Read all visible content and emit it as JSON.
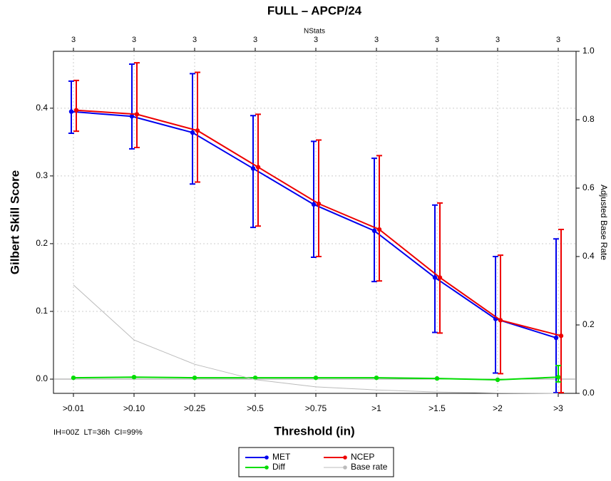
{
  "chart_data": {
    "type": "line",
    "title": "FULL – APCP/24",
    "top_axis_label": "NStats",
    "nstats": [
      "3",
      "3",
      "3",
      "3",
      "3",
      "3",
      "3",
      "3",
      "3"
    ],
    "xlabel": "Threshold (in)",
    "ylabel": "Gilbert Skill Score",
    "y2label": "Adjusted Base Rate",
    "caption": "IH=00Z  LT=36h  CI=99%",
    "categories": [
      ">0.01",
      ">0.10",
      ">0.25",
      ">0.5",
      ">0.75",
      ">1",
      ">1.5",
      ">2",
      ">3"
    ],
    "ylim": [
      -0.021,
      0.484
    ],
    "yticks": [
      {
        "value": 0,
        "label": "0.0"
      },
      0.1,
      0.2,
      0.3,
      0.4
    ],
    "y2lim": [
      0,
      1
    ],
    "y2ticks": [
      {
        "value": 0,
        "label": "0.0"
      },
      0.2,
      0.4,
      0.6,
      0.8,
      {
        "value": 1,
        "label": "1.0"
      }
    ],
    "grid": true,
    "series": [
      {
        "name": "MET",
        "color": "#0000ee",
        "values": [
          0.395,
          0.388,
          0.364,
          0.311,
          0.258,
          0.219,
          0.15,
          0.089,
          0.061
        ],
        "lower": [
          0.363,
          0.34,
          0.288,
          0.224,
          0.18,
          0.144,
          0.069,
          0.009,
          -0.02
        ],
        "upper": [
          0.44,
          0.465,
          0.451,
          0.389,
          0.351,
          0.326,
          0.257,
          0.181,
          0.207
        ]
      },
      {
        "name": "NCEP",
        "color": "#ee0000",
        "values": [
          0.397,
          0.391,
          0.367,
          0.313,
          0.259,
          0.221,
          0.15,
          0.087,
          0.064
        ],
        "lower": [
          0.366,
          0.342,
          0.291,
          0.226,
          0.181,
          0.145,
          0.068,
          0.008,
          -0.02
        ],
        "upper": [
          0.441,
          0.467,
          0.453,
          0.391,
          0.353,
          0.33,
          0.26,
          0.183,
          0.221
        ]
      },
      {
        "name": "Diff",
        "color": "#00dd00",
        "values": [
          0.002,
          0.003,
          0.002,
          0.002,
          0.002,
          0.002,
          0.001,
          -0.001,
          0.003
        ],
        "lower": [
          null,
          null,
          null,
          null,
          null,
          null,
          null,
          null,
          -0.004
        ],
        "upper": [
          null,
          null,
          null,
          null,
          null,
          null,
          null,
          null,
          0.02
        ]
      },
      {
        "name": "Base rate",
        "color": "#bbbbbb",
        "axis": "y2",
        "values": [
          0.317,
          0.156,
          0.085,
          0.04,
          0.019,
          0.01,
          0.004,
          0.001,
          0.0
        ]
      }
    ]
  }
}
